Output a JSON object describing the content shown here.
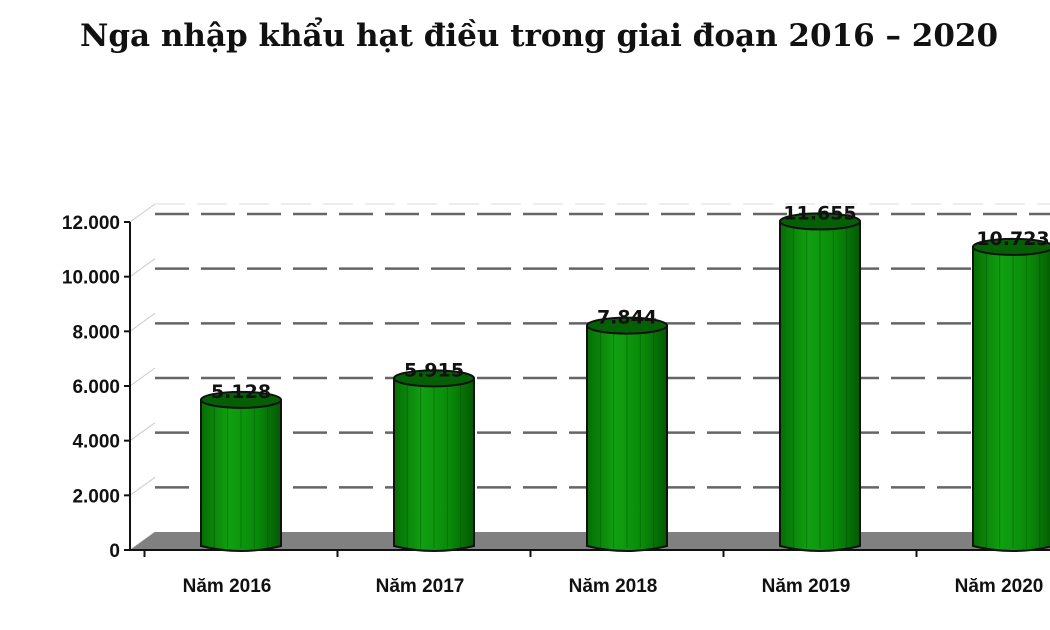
{
  "chart_data": {
    "type": "bar",
    "title": "Nga nhập khẩu hạt điều trong giai đoạn 2016 – 2020",
    "categories": [
      "Năm 2016",
      "Năm 2017",
      "Năm 2018",
      "Năm 2019",
      "Năm 2020"
    ],
    "values": [
      5128,
      5915,
      7844,
      11655,
      10723
    ],
    "value_labels": [
      "5.128",
      "5.915",
      "7.844",
      "11.655",
      "10.723"
    ],
    "yticks": [
      0,
      2000,
      4000,
      6000,
      8000,
      10000,
      12000
    ],
    "ytick_labels": [
      "0",
      "2.000",
      "4.000",
      "6.000",
      "8.000",
      "10.000",
      "12.000"
    ],
    "ylim": [
      0,
      12000
    ],
    "xlabel": "",
    "ylabel": "",
    "grid": "dashed horizontal",
    "bar_style": "3d cylinder",
    "colors": {
      "bar": "#0a8a0a",
      "bar_top": "#056005",
      "floor": "#808080"
    }
  }
}
